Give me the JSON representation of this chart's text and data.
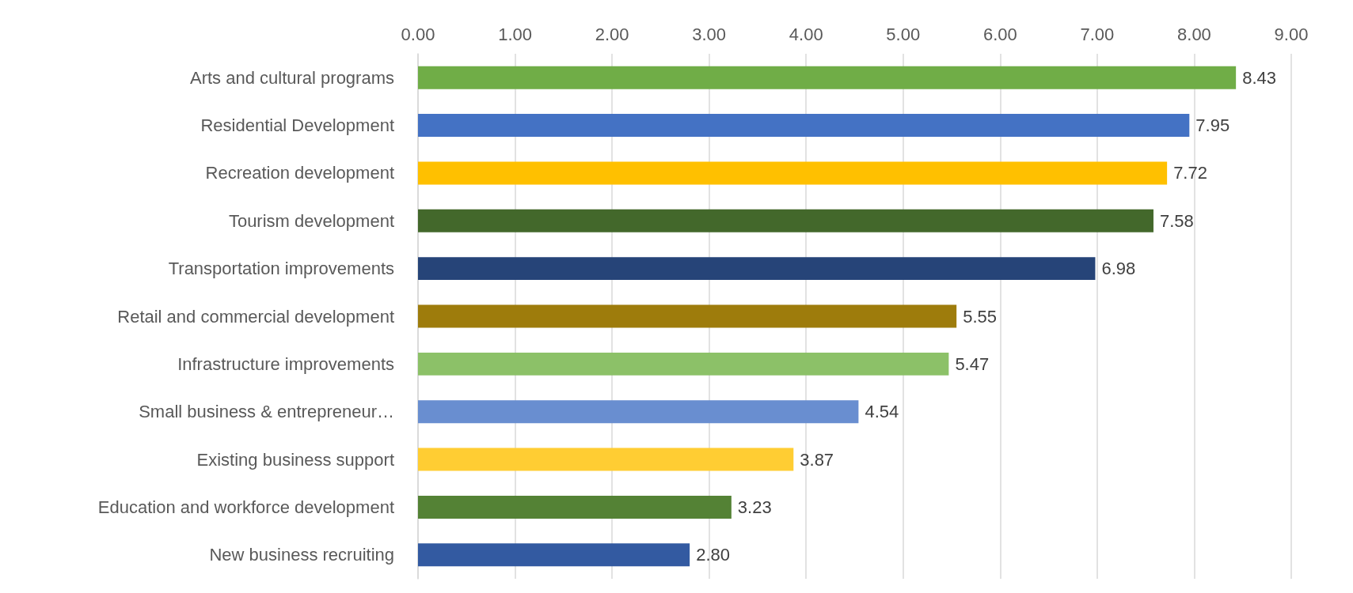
{
  "chart_data": {
    "type": "bar",
    "orientation": "horizontal",
    "categories": [
      "Arts and cultural programs",
      "Residential Development",
      "Recreation development",
      "Tourism development",
      "Transportation improvements",
      "Retail and commercial development",
      "Infrastructure improvements",
      "Small business & entrepreneur…",
      "Existing business support",
      "Education and workforce development",
      "New business recruiting"
    ],
    "values": [
      8.43,
      7.95,
      7.72,
      7.58,
      6.98,
      5.55,
      5.47,
      4.54,
      3.87,
      3.23,
      2.8
    ],
    "value_labels": [
      "8.43",
      "7.95",
      "7.72",
      "7.58",
      "6.98",
      "5.55",
      "5.47",
      "4.54",
      "3.87",
      "3.23",
      "2.80"
    ],
    "colors": [
      "#70ad47",
      "#4472c4",
      "#ffc000",
      "#43682b",
      "#264478",
      "#9e7c0c",
      "#8cc168",
      "#698ed0",
      "#ffcd33",
      "#548235",
      "#335aa1"
    ],
    "xlim": [
      0,
      9
    ],
    "xticks": [
      {
        "value": 0,
        "label": "0.00"
      },
      {
        "value": 1,
        "label": "1.00"
      },
      {
        "value": 2,
        "label": "2.00"
      },
      {
        "value": 3,
        "label": "3.00"
      },
      {
        "value": 4,
        "label": "4.00"
      },
      {
        "value": 5,
        "label": "5.00"
      },
      {
        "value": 6,
        "label": "6.00"
      },
      {
        "value": 7,
        "label": "7.00"
      },
      {
        "value": 8,
        "label": "8.00"
      },
      {
        "value": 9,
        "label": "9.00"
      }
    ],
    "grid": "x"
  }
}
